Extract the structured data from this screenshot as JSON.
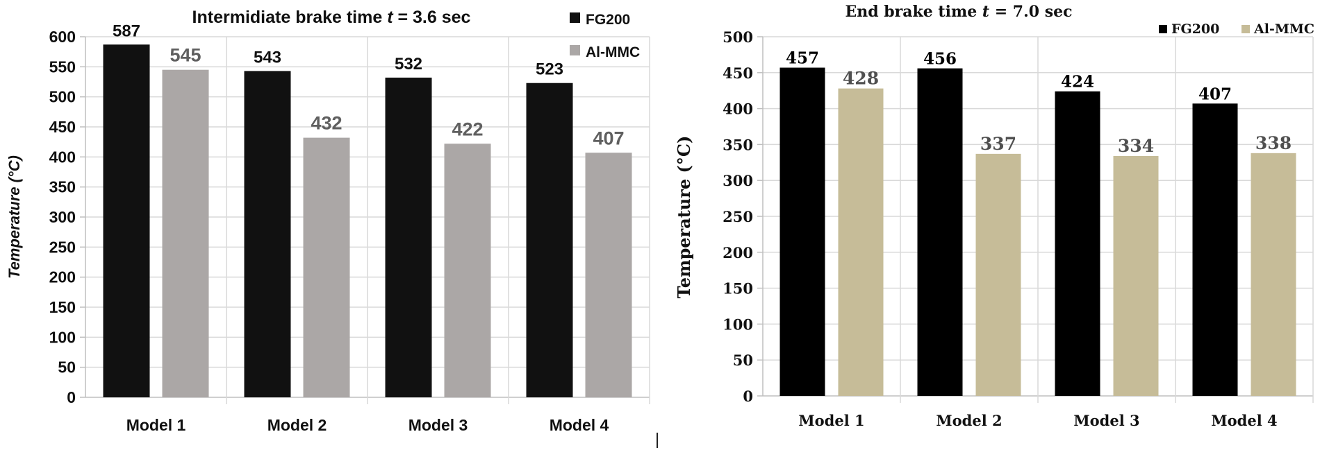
{
  "chart_data": [
    {
      "type": "bar",
      "title_prefix": "Intermidiate brake time ",
      "title_var": "t",
      "title_suffix": " = 3.6 sec",
      "xlabel": "",
      "ylabel": "Temperature (°C)",
      "ylim": [
        0,
        600
      ],
      "ytick_step": 50,
      "yticks": [
        "0",
        "50",
        "100",
        "150",
        "200",
        "250",
        "300",
        "350",
        "400",
        "450",
        "500",
        "550",
        "600"
      ],
      "categories": [
        "Model 1",
        "Model 2",
        "Model 3",
        "Model 4"
      ],
      "grid": true,
      "legend_position": "top-right",
      "series": [
        {
          "name": "FG200",
          "color": "#111111",
          "label_color": "#111111",
          "values": [
            587,
            543,
            532,
            523
          ]
        },
        {
          "name": "Al-MMC",
          "color": "#aba7a6",
          "label_color": "#5f5f5f",
          "values": [
            545,
            432,
            422,
            407
          ]
        }
      ]
    },
    {
      "type": "bar",
      "title_prefix": "End brake time ",
      "title_var": "t",
      "title_suffix": " = 7.0 sec",
      "xlabel": "",
      "ylabel": "Temperature (°C)",
      "ylim": [
        0,
        500
      ],
      "ytick_step": 50,
      "yticks": [
        "0",
        "50",
        "100",
        "150",
        "200",
        "250",
        "300",
        "350",
        "400",
        "450",
        "500"
      ],
      "categories": [
        "Model 1",
        "Model 2",
        "Model 3",
        "Model 4"
      ],
      "grid": true,
      "legend_position": "top-right",
      "series": [
        {
          "name": "FG200",
          "color": "#000000",
          "label_color": "#000000",
          "values": [
            457,
            456,
            424,
            407
          ]
        },
        {
          "name": "Al-MMC",
          "color": "#c6bc98",
          "label_color": "#4f4f4f",
          "values": [
            428,
            337,
            334,
            338
          ]
        }
      ]
    }
  ]
}
